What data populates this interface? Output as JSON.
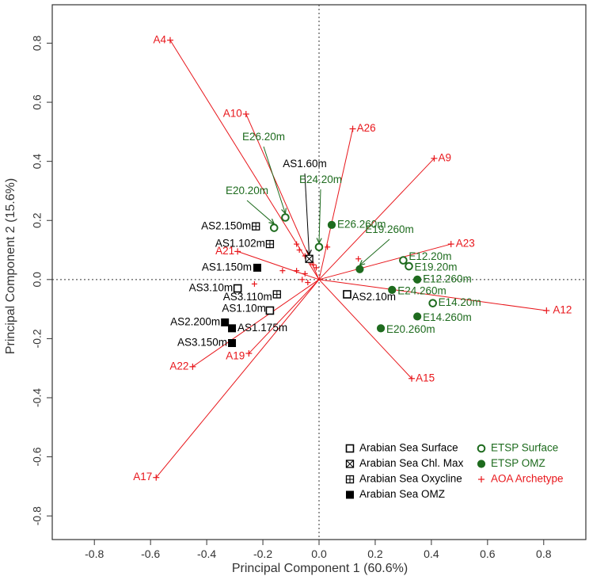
{
  "chart_data": {
    "type": "biplot",
    "xlabel": "Principal Component 1 (60.6%)",
    "ylabel": "Principal Component 2 (15.6%)",
    "xlim": [
      -0.95,
      0.95
    ],
    "ylim": [
      -0.88,
      0.93
    ],
    "x_ticks": [
      -0.8,
      -0.6,
      -0.4,
      -0.2,
      0.0,
      0.2,
      0.4,
      0.6,
      0.8
    ],
    "y_ticks": [
      -0.8,
      -0.6,
      -0.4,
      -0.2,
      0.0,
      0.2,
      0.4,
      0.6,
      0.8
    ],
    "colors": {
      "red": "#e8161b",
      "green": "#1e6b1e",
      "black": "#000000",
      "axis": "#333333"
    },
    "archetype_vectors": [
      {
        "label": "A4",
        "x": -0.53,
        "y": 0.81
      },
      {
        "label": "A10",
        "x": -0.26,
        "y": 0.56
      },
      {
        "label": "A26",
        "x": 0.12,
        "y": 0.51
      },
      {
        "label": "A9",
        "x": 0.41,
        "y": 0.41
      },
      {
        "label": "A23",
        "x": 0.47,
        "y": 0.12
      },
      {
        "label": "A12",
        "x": 0.81,
        "y": -0.105
      },
      {
        "label": "A15",
        "x": 0.33,
        "y": -0.335
      },
      {
        "label": "A21",
        "x": -0.29,
        "y": 0.095
      },
      {
        "label": "A22",
        "x": -0.45,
        "y": -0.295
      },
      {
        "label": "A19",
        "x": -0.25,
        "y": -0.25
      },
      {
        "label": "A17",
        "x": -0.58,
        "y": -0.67
      }
    ],
    "archetype_minor": [
      {
        "x": -0.08,
        "y": 0.12
      },
      {
        "x": -0.07,
        "y": 0.1
      },
      {
        "x": -0.08,
        "y": 0.03
      },
      {
        "x": -0.05,
        "y": 0.08
      },
      {
        "x": -0.03,
        "y": 0.06
      },
      {
        "x": -0.02,
        "y": 0.05
      },
      {
        "x": -0.01,
        "y": 0.04
      },
      {
        "x": -0.13,
        "y": 0.03
      },
      {
        "x": -0.23,
        "y": -0.015
      },
      {
        "x": -0.05,
        "y": 0.02
      },
      {
        "x": -0.06,
        "y": 0.0
      },
      {
        "x": 0.03,
        "y": 0.11
      },
      {
        "x": 0.14,
        "y": 0.07
      },
      {
        "x": -0.04,
        "y": -0.01
      }
    ],
    "samples": [
      {
        "label": "AS1.60m",
        "group": "Arabian Sea Chl. Max",
        "x": -0.035,
        "y": 0.07
      },
      {
        "label": "AS2.150m",
        "group": "Arabian Sea Oxycline",
        "x": -0.225,
        "y": 0.18
      },
      {
        "label": "AS1.102m",
        "group": "Arabian Sea Oxycline",
        "x": -0.175,
        "y": 0.12
      },
      {
        "label": "AS3.110m",
        "group": "Arabian Sea Oxycline",
        "x": -0.15,
        "y": -0.05
      },
      {
        "label": "AS1.150m",
        "group": "Arabian Sea OMZ",
        "x": -0.22,
        "y": 0.04
      },
      {
        "label": "AS3.10m",
        "group": "Arabian Sea Surface",
        "x": -0.29,
        "y": -0.03
      },
      {
        "label": "AS1.10m",
        "group": "Arabian Sea Surface",
        "x": -0.175,
        "y": -0.105
      },
      {
        "label": "AS2.10m",
        "group": "Arabian Sea Surface",
        "x": 0.1,
        "y": -0.05
      },
      {
        "label": "AS2.200m",
        "group": "Arabian Sea OMZ",
        "x": -0.335,
        "y": -0.145
      },
      {
        "label": "AS1.175m",
        "group": "Arabian Sea OMZ",
        "x": -0.31,
        "y": -0.165
      },
      {
        "label": "AS3.150m",
        "group": "Arabian Sea OMZ",
        "x": -0.31,
        "y": -0.215
      },
      {
        "label": "E26.20m",
        "group": "ETSP Surface",
        "x": -0.12,
        "y": 0.21
      },
      {
        "label": "E20.20m",
        "group": "ETSP Surface",
        "x": -0.16,
        "y": 0.175
      },
      {
        "label": "E24.20m",
        "group": "ETSP Surface",
        "x": 0.0,
        "y": 0.11
      },
      {
        "label": "E26.260m",
        "group": "ETSP OMZ",
        "x": 0.045,
        "y": 0.185
      },
      {
        "label": "E19.260m",
        "group": "ETSP OMZ",
        "x": 0.145,
        "y": 0.035
      },
      {
        "label": "E12.20m",
        "group": "ETSP Surface",
        "x": 0.3,
        "y": 0.065
      },
      {
        "label": "E19.20m",
        "group": "ETSP Surface",
        "x": 0.32,
        "y": 0.045
      },
      {
        "label": "E12.260m",
        "group": "ETSP OMZ",
        "x": 0.35,
        "y": 0.0
      },
      {
        "label": "E24.260m",
        "group": "ETSP OMZ",
        "x": 0.26,
        "y": -0.035
      },
      {
        "label": "E14.20m",
        "group": "ETSP Surface",
        "x": 0.405,
        "y": -0.08
      },
      {
        "label": "E14.260m",
        "group": "ETSP OMZ",
        "x": 0.35,
        "y": -0.125
      },
      {
        "label": "E20.260m",
        "group": "ETSP OMZ",
        "x": 0.22,
        "y": -0.165
      }
    ],
    "legend": {
      "left": [
        {
          "label": "Arabian Sea Surface",
          "marker": "open-square"
        },
        {
          "label": "Arabian Sea Chl. Max",
          "marker": "crossed-square"
        },
        {
          "label": "Arabian Sea Oxycline",
          "marker": "plus-square"
        },
        {
          "label": "Arabian Sea OMZ",
          "marker": "filled-square"
        }
      ],
      "right": [
        {
          "label": "ETSP Surface",
          "marker": "open-circle"
        },
        {
          "label": "ETSP OMZ",
          "marker": "filled-circle"
        },
        {
          "label": "AOA Archetype",
          "marker": "plus"
        }
      ]
    }
  }
}
